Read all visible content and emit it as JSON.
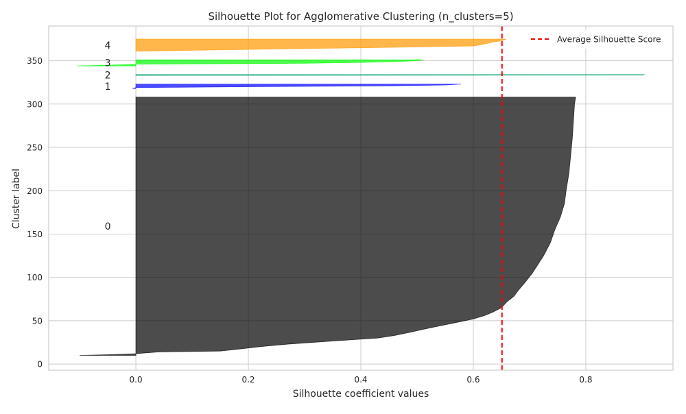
{
  "chart_data": {
    "type": "silhouette",
    "title": "Silhouette Plot for Agglomerative Clustering (n_clusters=5)",
    "xlabel": "Silhouette coefficient values",
    "ylabel": "Cluster label",
    "xlim": [
      -0.155,
      0.955
    ],
    "ylim": [
      -7,
      390
    ],
    "xticks": [
      0.0,
      0.2,
      0.4,
      0.6,
      0.8
    ],
    "xtick_labels": [
      "0.0",
      "0.2",
      "0.4",
      "0.6",
      "0.8"
    ],
    "yticks": [
      0,
      50,
      100,
      150,
      200,
      250,
      300,
      350
    ],
    "ytick_labels": [
      "0",
      "50",
      "100",
      "150",
      "200",
      "250",
      "300",
      "350"
    ],
    "grid": true,
    "legend": {
      "position": "top-right",
      "entries": [
        "Average Silhouette Score"
      ]
    },
    "average_silhouette": 0.651,
    "average_line_color": "#ff0000",
    "clusters": [
      {
        "label": "0",
        "color": "#000000",
        "opacity": 0.7,
        "y_lower": 10,
        "y_upper": 308,
        "label_x": -0.05,
        "label_y": 159,
        "profile": [
          [
            10,
            -0.1
          ],
          [
            11,
            -0.04
          ],
          [
            12,
            0.0
          ],
          [
            13,
            0.02
          ],
          [
            14,
            0.04
          ],
          [
            15,
            0.15
          ],
          [
            17,
            0.18
          ],
          [
            20,
            0.22
          ],
          [
            23,
            0.27
          ],
          [
            27,
            0.36
          ],
          [
            30,
            0.43
          ],
          [
            33,
            0.46
          ],
          [
            37,
            0.49
          ],
          [
            40,
            0.51
          ],
          [
            44,
            0.54
          ],
          [
            48,
            0.57
          ],
          [
            52,
            0.6
          ],
          [
            56,
            0.62
          ],
          [
            60,
            0.635
          ],
          [
            65,
            0.65
          ],
          [
            72,
            0.66
          ],
          [
            78,
            0.672
          ],
          [
            85,
            0.68
          ],
          [
            95,
            0.693
          ],
          [
            105,
            0.705
          ],
          [
            115,
            0.715
          ],
          [
            125,
            0.725
          ],
          [
            140,
            0.737
          ],
          [
            155,
            0.745
          ],
          [
            170,
            0.755
          ],
          [
            185,
            0.762
          ],
          [
            200,
            0.765
          ],
          [
            220,
            0.77
          ],
          [
            240,
            0.773
          ],
          [
            260,
            0.776
          ],
          [
            280,
            0.778
          ],
          [
            300,
            0.78
          ],
          [
            308,
            0.782
          ]
        ]
      },
      {
        "label": "1",
        "color": "#0000ff",
        "opacity": 0.7,
        "y_lower": 318,
        "y_upper": 323,
        "label_x": -0.05,
        "label_y": 320.5,
        "profile": [
          [
            318,
            -0.006
          ],
          [
            319,
            0.0
          ],
          [
            320,
            0.2
          ],
          [
            321,
            0.45
          ],
          [
            322,
            0.55
          ],
          [
            323,
            0.578
          ]
        ]
      },
      {
        "label": "2",
        "color": "#009e73",
        "opacity": 0.7,
        "y_lower": 333,
        "y_upper": 334,
        "label_x": -0.05,
        "label_y": 333.5,
        "profile": [
          [
            333,
            0.0
          ],
          [
            333.5,
            0.9
          ],
          [
            334,
            0.905
          ]
        ]
      },
      {
        "label": "3",
        "color": "#00ff00",
        "opacity": 0.7,
        "y_lower": 344,
        "y_upper": 351,
        "label_x": -0.05,
        "label_y": 347.5,
        "profile": [
          [
            344,
            -0.105
          ],
          [
            345,
            -0.04
          ],
          [
            346,
            0.0
          ],
          [
            347,
            0.3
          ],
          [
            348,
            0.4
          ],
          [
            349,
            0.46
          ],
          [
            350,
            0.5
          ],
          [
            351,
            0.512
          ]
        ]
      },
      {
        "label": "4",
        "color": "#ff9900",
        "opacity": 0.7,
        "y_lower": 361,
        "y_upper": 375,
        "label_x": -0.05,
        "label_y": 368,
        "profile": [
          [
            361,
            0.0
          ],
          [
            362,
            0.1
          ],
          [
            363,
            0.2
          ],
          [
            364,
            0.3
          ],
          [
            365,
            0.41
          ],
          [
            366,
            0.51
          ],
          [
            367,
            0.6
          ],
          [
            368,
            0.61
          ],
          [
            370,
            0.625
          ],
          [
            372,
            0.64
          ],
          [
            373,
            0.65
          ],
          [
            374,
            0.655
          ],
          [
            375,
            0.658
          ]
        ]
      }
    ]
  }
}
